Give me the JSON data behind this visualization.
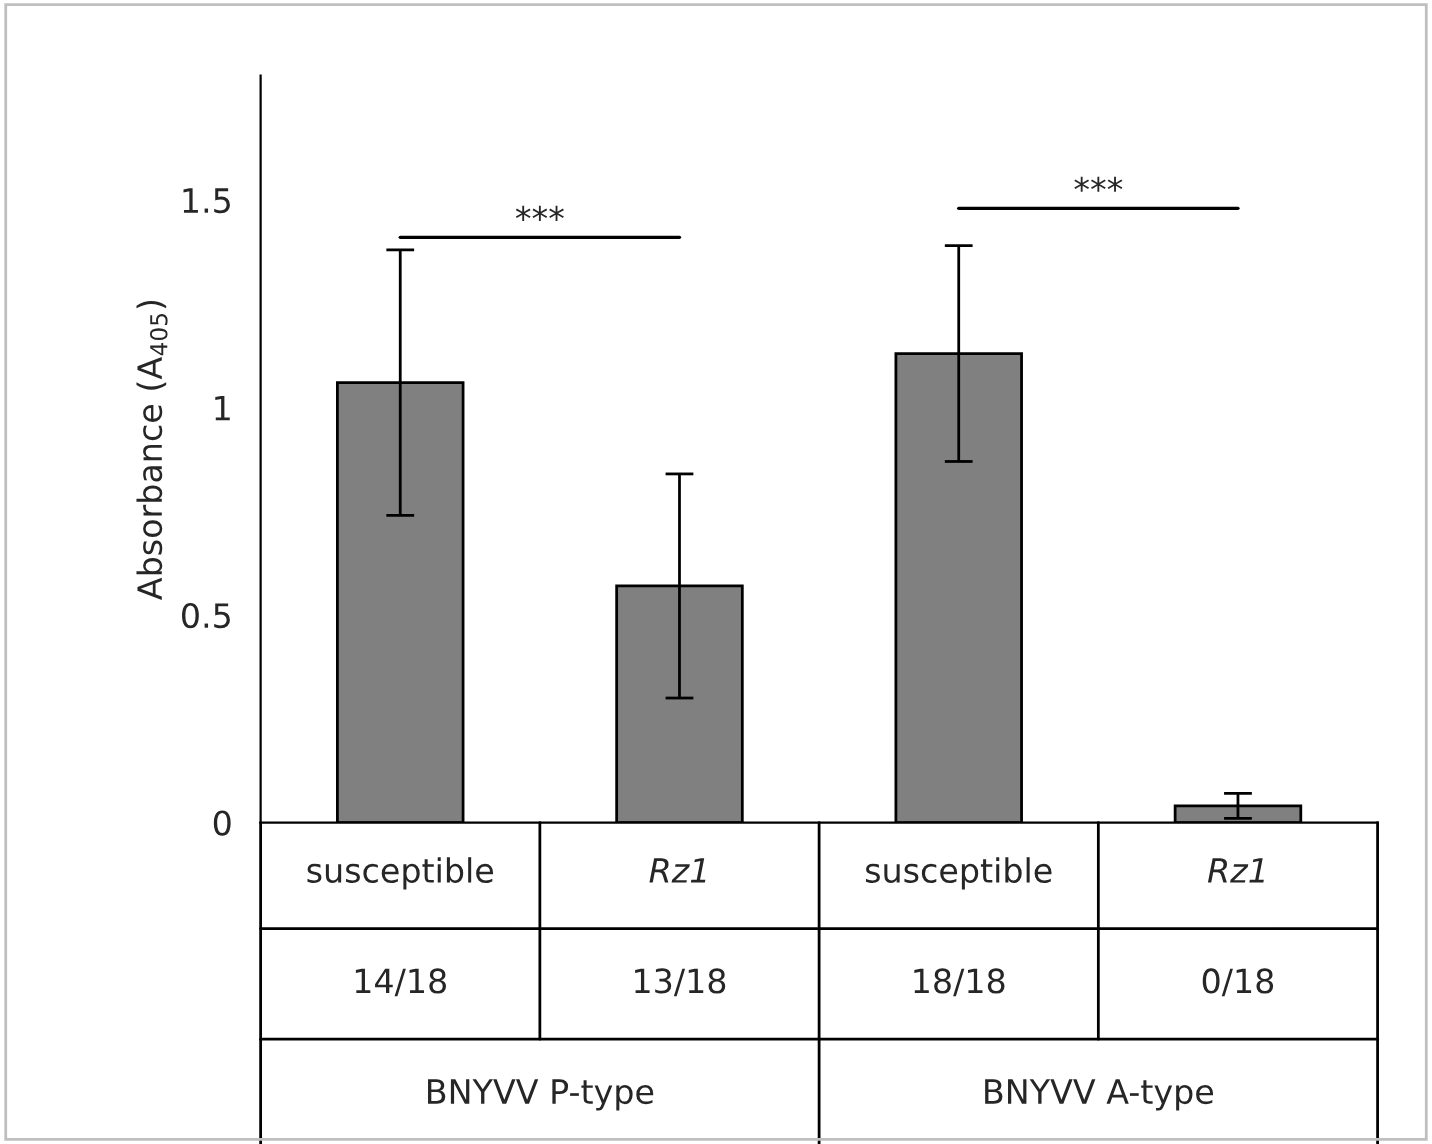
{
  "chart_data": {
    "type": "bar",
    "ylabel": "Absorbance (A$_{405}$)",
    "categories": [
      "susceptible",
      "Rz1",
      "susceptible",
      "Rz1"
    ],
    "values": [
      1.06,
      0.57,
      1.13,
      0.04
    ],
    "errors": [
      0.32,
      0.27,
      0.26,
      0.03
    ],
    "color": "#808080",
    "ylim": [
      0,
      1.8
    ],
    "yticks": [
      0,
      0.5,
      1,
      1.5
    ],
    "grid": false,
    "legend": false,
    "annotations": [
      "14/18",
      "13/18",
      "18/18",
      "0/18",
      "BNYVV P-type",
      "BNYVV A-type",
      "***",
      "***"
    ]
  }
}
